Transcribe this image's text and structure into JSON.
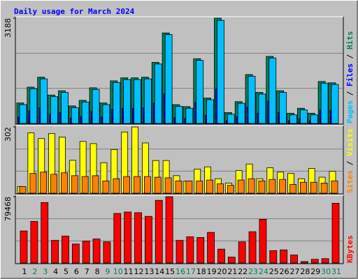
{
  "chart_data": [
    {
      "type": "bar",
      "title": "Daily usage for March 2024",
      "ylim": [
        0,
        3188
      ],
      "yticks": [
        3188
      ],
      "series": [
        {
          "name": "Hits",
          "color": "#00805c",
          "values": [
            620,
            1100,
            1400,
            860,
            990,
            530,
            700,
            1080,
            620,
            1290,
            1380,
            1380,
            1400,
            1850,
            2740,
            570,
            510,
            1960,
            770,
            3188,
            330,
            660,
            1480,
            940,
            2030,
            990,
            310,
            460,
            310,
            1270,
            1230
          ]
        },
        {
          "name": "Files",
          "color": "#0000ff",
          "values": [
            200,
            380,
            470,
            280,
            330,
            160,
            220,
            360,
            200,
            430,
            460,
            460,
            470,
            620,
            900,
            170,
            150,
            640,
            250,
            1050,
            90,
            210,
            500,
            310,
            680,
            330,
            90,
            140,
            90,
            420,
            400
          ]
        },
        {
          "name": "Pages",
          "color": "#00c0ff",
          "values": [
            570,
            1050,
            1350,
            810,
            940,
            480,
            650,
            1030,
            570,
            1240,
            1330,
            1330,
            1350,
            1800,
            2690,
            520,
            460,
            1910,
            720,
            3120,
            280,
            610,
            1430,
            890,
            1980,
            940,
            260,
            410,
            260,
            1220,
            1180
          ]
        }
      ]
    },
    {
      "type": "bar",
      "ylim": [
        0,
        302
      ],
      "yticks": [
        302
      ],
      "series": [
        {
          "name": "Visits",
          "color": "#ffff00",
          "values": [
            30,
            275,
            249,
            272,
            256,
            150,
            236,
            226,
            139,
            199,
            279,
            302,
            229,
            149,
            149,
            80,
            56,
            110,
            120,
            66,
            46,
            103,
            133,
            66,
            116,
            96,
            90,
            66,
            113,
            73,
            100
          ]
        },
        {
          "name": "Sites",
          "color": "#ff8000",
          "values": [
            30,
            90,
            96,
            86,
            93,
            80,
            76,
            80,
            56,
            66,
            76,
            76,
            76,
            73,
            70,
            56,
            56,
            56,
            60,
            43,
            36,
            60,
            66,
            56,
            63,
            63,
            40,
            50,
            50,
            46,
            56
          ]
        }
      ]
    },
    {
      "type": "bar",
      "ylim": [
        0,
        79468
      ],
      "yticks": [
        79468
      ],
      "categories": [
        "1",
        "2",
        "3",
        "4",
        "5",
        "6",
        "7",
        "8",
        "9",
        "10",
        "11",
        "12",
        "13",
        "14",
        "15",
        "16",
        "17",
        "18",
        "19",
        "20",
        "21",
        "22",
        "23",
        "24",
        "25",
        "26",
        "27",
        "28",
        "29",
        "30",
        "31"
      ],
      "weekend_color": "#00805c",
      "weekends": [
        false,
        true,
        true,
        false,
        false,
        false,
        false,
        false,
        true,
        true,
        false,
        false,
        false,
        false,
        false,
        true,
        true,
        false,
        false,
        false,
        false,
        false,
        true,
        true,
        false,
        false,
        false,
        false,
        false,
        true,
        true
      ],
      "series": [
        {
          "name": "KBytes",
          "color": "#ff0000",
          "values": [
            38400,
            49800,
            72500,
            27100,
            32300,
            22700,
            26200,
            28800,
            25300,
            59400,
            61100,
            60300,
            55900,
            75100,
            79468,
            27100,
            31400,
            30600,
            36700,
            16600,
            7000,
            25300,
            37500,
            52400,
            14800,
            15700,
            9600,
            1700,
            4400,
            5200,
            71600
          ]
        }
      ]
    }
  ]
}
